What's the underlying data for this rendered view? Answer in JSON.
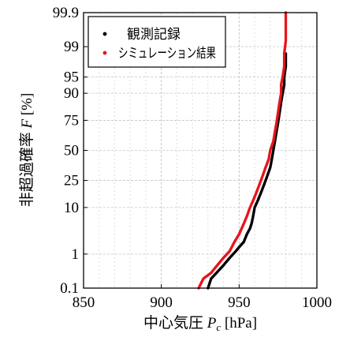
{
  "chart_data": {
    "type": "scatter",
    "xlabel_main": "中心気圧 ",
    "xlabel_var": "P",
    "xlabel_sub": "c",
    "xlabel_unit": " [hPa]",
    "ylabel_main": "非超過確率 ",
    "ylabel_var": "F",
    "ylabel_unit": " [%]",
    "xlim": [
      850,
      1000
    ],
    "x_ticks": [
      850,
      900,
      950,
      1000
    ],
    "y_scale": "normal-probability",
    "y_ticks": [
      {
        "value": 0.1,
        "label": "0.1"
      },
      {
        "value": 1,
        "label": "1"
      },
      {
        "value": 10,
        "label": "10"
      },
      {
        "value": 25,
        "label": "25"
      },
      {
        "value": 50,
        "label": "50"
      },
      {
        "value": 75,
        "label": "75"
      },
      {
        "value": 90,
        "label": "90"
      },
      {
        "value": 95,
        "label": "95"
      },
      {
        "value": 99,
        "label": "99"
      },
      {
        "value": 99.9,
        "label": "99.9"
      }
    ],
    "ylim": [
      0.1,
      99.9
    ],
    "grid": true,
    "legend": "top-left",
    "series": [
      {
        "name": "観測記録",
        "color": "#000000",
        "points": [
          [
            930,
            0.1
          ],
          [
            932,
            0.2
          ],
          [
            940,
            0.5
          ],
          [
            944,
            0.8
          ],
          [
            948,
            1.2
          ],
          [
            950,
            1.5
          ],
          [
            953,
            2
          ],
          [
            955,
            3
          ],
          [
            957,
            4
          ],
          [
            958,
            5
          ],
          [
            959,
            7
          ],
          [
            960,
            10
          ],
          [
            962,
            13
          ],
          [
            964,
            17
          ],
          [
            966,
            22
          ],
          [
            968,
            28
          ],
          [
            970,
            35
          ],
          [
            971,
            42
          ],
          [
            972,
            50
          ],
          [
            973,
            58
          ],
          [
            974,
            66
          ],
          [
            975,
            73
          ],
          [
            976,
            80
          ],
          [
            977,
            86
          ],
          [
            978,
            90
          ],
          [
            979,
            93
          ],
          [
            979,
            95
          ],
          [
            980,
            97
          ],
          [
            980,
            98.5
          ]
        ]
      },
      {
        "name": "シミュレーション結果",
        "color": "#e8141b",
        "points": [
          [
            924,
            0.1
          ],
          [
            927,
            0.2
          ],
          [
            932,
            0.3
          ],
          [
            936,
            0.5
          ],
          [
            940,
            0.8
          ],
          [
            944,
            1.2
          ],
          [
            947,
            2
          ],
          [
            950,
            3
          ],
          [
            953,
            5
          ],
          [
            955,
            7
          ],
          [
            957,
            10
          ],
          [
            959,
            13
          ],
          [
            961,
            17
          ],
          [
            963,
            22
          ],
          [
            965,
            28
          ],
          [
            967,
            35
          ],
          [
            969,
            42
          ],
          [
            970,
            50
          ],
          [
            972,
            58
          ],
          [
            973,
            66
          ],
          [
            974,
            73
          ],
          [
            975,
            80
          ],
          [
            976,
            86
          ],
          [
            977,
            90
          ],
          [
            977,
            93
          ],
          [
            978,
            95
          ],
          [
            979,
            97
          ],
          [
            979,
            98.5
          ],
          [
            980,
            99.3
          ],
          [
            980,
            99.9
          ]
        ]
      }
    ]
  }
}
